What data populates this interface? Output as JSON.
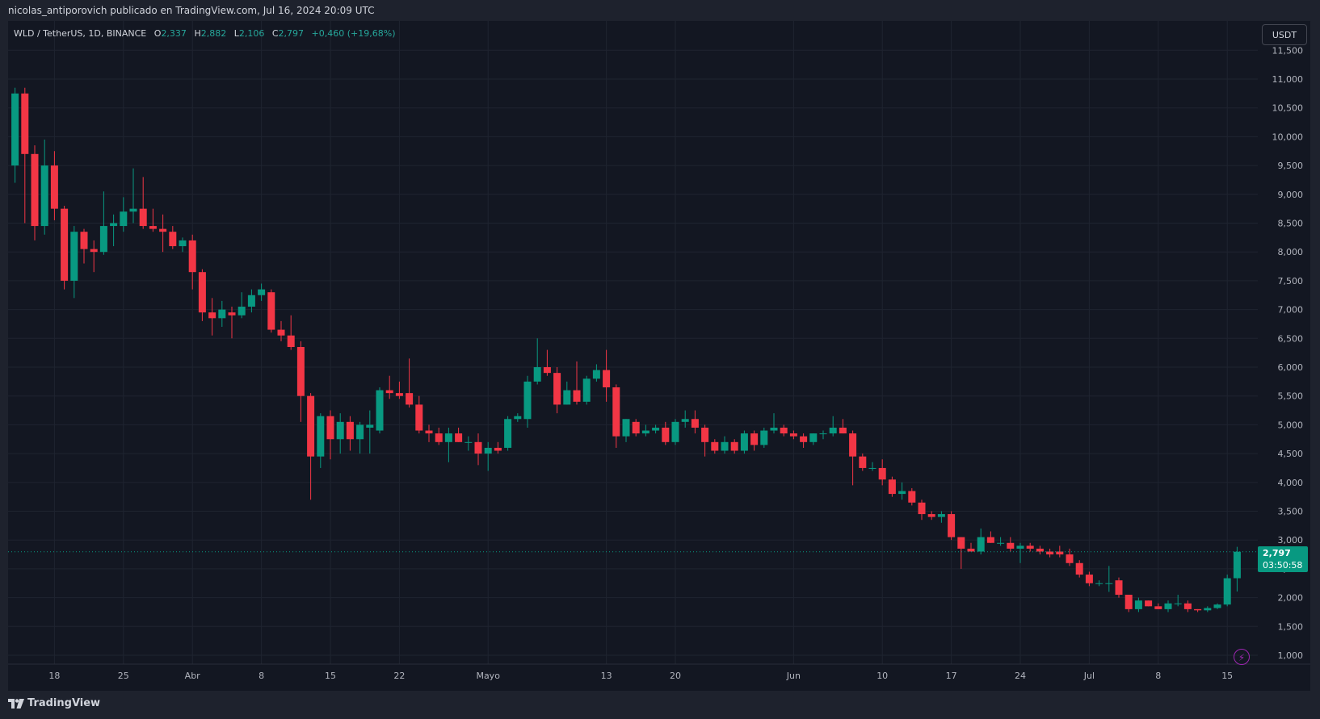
{
  "header": {
    "author_line": "nicolas_antiporovich publicado en TradingView.com, Jul 16, 2024 20:09 UTC"
  },
  "symbol": {
    "name": "WLD / TetherUS, 1D, BINANCE",
    "o_label": "O",
    "o_value": "2,337",
    "h_label": "H",
    "h_value": "2,882",
    "l_label": "L",
    "l_value": "2,106",
    "c_label": "C",
    "c_value": "2,797",
    "change": "+0,460 (+19,68%)"
  },
  "currency": "USDT",
  "last_price": {
    "price": "2,797",
    "countdown": "03:50:58"
  },
  "footer": {
    "brand": "TradingView"
  },
  "colors": {
    "up": "#089981",
    "down": "#f23645",
    "background": "#131722",
    "grid": "#1f2430",
    "text": "#b2b5be",
    "accent": "#9c27b0"
  },
  "icons": [
    "tradingview-logo-icon",
    "lightning-icon"
  ],
  "chart_data": {
    "type": "candlestick",
    "title": "",
    "xlabel": "",
    "ylabel": "",
    "y_axis": {
      "ticks": [
        1.0,
        1.5,
        2.0,
        2.5,
        3.0,
        3.5,
        4.0,
        4.5,
        5.0,
        5.5,
        6.0,
        6.5,
        7.0,
        7.5,
        8.0,
        8.5,
        9.0,
        9.5,
        10.0,
        10.5,
        11.0,
        11.5
      ],
      "tick_labels": [
        "1,000",
        "1,500",
        "2,000",
        "2,500",
        "3,000",
        "3,500",
        "4,000",
        "4,500",
        "5,000",
        "5,500",
        "6,000",
        "6,500",
        "7,000",
        "7,500",
        "8,000",
        "8,500",
        "9,000",
        "9,500",
        "10,000",
        "10,500",
        "11,000",
        "11,500"
      ],
      "ylim": [
        0.9,
        11.55
      ]
    },
    "x_axis": {
      "labels": [
        {
          "label": "18",
          "date": "2024-03-18"
        },
        {
          "label": "25",
          "date": "2024-03-25"
        },
        {
          "label": "Abr",
          "date": "2024-04-01"
        },
        {
          "label": "8",
          "date": "2024-04-08"
        },
        {
          "label": "15",
          "date": "2024-04-15"
        },
        {
          "label": "22",
          "date": "2024-04-22"
        },
        {
          "label": "Mayo",
          "date": "2024-05-01"
        },
        {
          "label": "13",
          "date": "2024-05-13"
        },
        {
          "label": "20",
          "date": "2024-05-20"
        },
        {
          "label": "Jun",
          "date": "2024-06-01"
        },
        {
          "label": "10",
          "date": "2024-06-10"
        },
        {
          "label": "17",
          "date": "2024-06-17"
        },
        {
          "label": "24",
          "date": "2024-06-24"
        },
        {
          "label": "Jul",
          "date": "2024-07-01"
        },
        {
          "label": "8",
          "date": "2024-07-08"
        },
        {
          "label": "15",
          "date": "2024-07-15"
        }
      ],
      "xlim": [
        "2024-03-14",
        "2024-07-16"
      ]
    },
    "grid": true,
    "candles": [
      {
        "date": "2024-03-14",
        "o": 9.5,
        "h": 10.85,
        "l": 9.2,
        "c": 10.75
      },
      {
        "date": "2024-03-15",
        "o": 10.75,
        "h": 10.85,
        "l": 8.5,
        "c": 9.7
      },
      {
        "date": "2024-03-16",
        "o": 9.7,
        "h": 9.85,
        "l": 8.2,
        "c": 8.45
      },
      {
        "date": "2024-03-17",
        "o": 8.45,
        "h": 9.95,
        "l": 8.3,
        "c": 9.5
      },
      {
        "date": "2024-03-18",
        "o": 9.5,
        "h": 9.75,
        "l": 8.55,
        "c": 8.75
      },
      {
        "date": "2024-03-19",
        "o": 8.75,
        "h": 8.8,
        "l": 7.35,
        "c": 7.5
      },
      {
        "date": "2024-03-20",
        "o": 7.5,
        "h": 8.45,
        "l": 7.2,
        "c": 8.35
      },
      {
        "date": "2024-03-21",
        "o": 8.35,
        "h": 8.4,
        "l": 7.8,
        "c": 8.05
      },
      {
        "date": "2024-03-22",
        "o": 8.05,
        "h": 8.2,
        "l": 7.65,
        "c": 8.0
      },
      {
        "date": "2024-03-23",
        "o": 8.0,
        "h": 9.05,
        "l": 7.95,
        "c": 8.45
      },
      {
        "date": "2024-03-24",
        "o": 8.45,
        "h": 8.65,
        "l": 8.1,
        "c": 8.5
      },
      {
        "date": "2024-03-25",
        "o": 8.45,
        "h": 8.95,
        "l": 8.35,
        "c": 8.7
      },
      {
        "date": "2024-03-26",
        "o": 8.7,
        "h": 9.45,
        "l": 8.5,
        "c": 8.75
      },
      {
        "date": "2024-03-27",
        "o": 8.75,
        "h": 9.3,
        "l": 8.4,
        "c": 8.45
      },
      {
        "date": "2024-03-28",
        "o": 8.45,
        "h": 8.75,
        "l": 8.35,
        "c": 8.4
      },
      {
        "date": "2024-03-29",
        "o": 8.4,
        "h": 8.65,
        "l": 8.0,
        "c": 8.35
      },
      {
        "date": "2024-03-30",
        "o": 8.35,
        "h": 8.45,
        "l": 8.05,
        "c": 8.1
      },
      {
        "date": "2024-03-31",
        "o": 8.1,
        "h": 8.25,
        "l": 8.0,
        "c": 8.2
      },
      {
        "date": "2024-04-01",
        "o": 8.2,
        "h": 8.3,
        "l": 7.35,
        "c": 7.65
      },
      {
        "date": "2024-04-02",
        "o": 7.65,
        "h": 7.7,
        "l": 6.8,
        "c": 6.95
      },
      {
        "date": "2024-04-03",
        "o": 6.95,
        "h": 7.2,
        "l": 6.55,
        "c": 6.85
      },
      {
        "date": "2024-04-04",
        "o": 6.85,
        "h": 7.15,
        "l": 6.7,
        "c": 7.0
      },
      {
        "date": "2024-04-05",
        "o": 6.95,
        "h": 7.05,
        "l": 6.5,
        "c": 6.9
      },
      {
        "date": "2024-04-06",
        "o": 6.9,
        "h": 7.3,
        "l": 6.85,
        "c": 7.05
      },
      {
        "date": "2024-04-07",
        "o": 7.05,
        "h": 7.35,
        "l": 6.95,
        "c": 7.25
      },
      {
        "date": "2024-04-08",
        "o": 7.25,
        "h": 7.45,
        "l": 7.15,
        "c": 7.35
      },
      {
        "date": "2024-04-09",
        "o": 7.3,
        "h": 7.35,
        "l": 6.6,
        "c": 6.65
      },
      {
        "date": "2024-04-10",
        "o": 6.65,
        "h": 6.8,
        "l": 6.45,
        "c": 6.55
      },
      {
        "date": "2024-04-11",
        "o": 6.55,
        "h": 6.9,
        "l": 6.3,
        "c": 6.35
      },
      {
        "date": "2024-04-12",
        "o": 6.35,
        "h": 6.45,
        "l": 5.05,
        "c": 5.5
      },
      {
        "date": "2024-04-13",
        "o": 5.5,
        "h": 5.55,
        "l": 3.7,
        "c": 4.45
      },
      {
        "date": "2024-04-14",
        "o": 4.45,
        "h": 5.2,
        "l": 4.25,
        "c": 5.15
      },
      {
        "date": "2024-04-15",
        "o": 5.15,
        "h": 5.25,
        "l": 4.4,
        "c": 4.75
      },
      {
        "date": "2024-04-16",
        "o": 4.75,
        "h": 5.2,
        "l": 4.5,
        "c": 5.05
      },
      {
        "date": "2024-04-17",
        "o": 5.05,
        "h": 5.15,
        "l": 4.55,
        "c": 4.75
      },
      {
        "date": "2024-04-18",
        "o": 4.75,
        "h": 5.05,
        "l": 4.5,
        "c": 5.0
      },
      {
        "date": "2024-04-19",
        "o": 4.95,
        "h": 5.25,
        "l": 4.5,
        "c": 5.0
      },
      {
        "date": "2024-04-20",
        "o": 4.9,
        "h": 5.65,
        "l": 4.85,
        "c": 5.6
      },
      {
        "date": "2024-04-21",
        "o": 5.6,
        "h": 5.85,
        "l": 5.45,
        "c": 5.55
      },
      {
        "date": "2024-04-22",
        "o": 5.55,
        "h": 5.75,
        "l": 5.45,
        "c": 5.5
      },
      {
        "date": "2024-04-23",
        "o": 5.55,
        "h": 6.15,
        "l": 5.3,
        "c": 5.35
      },
      {
        "date": "2024-04-24",
        "o": 5.35,
        "h": 5.5,
        "l": 4.85,
        "c": 4.9
      },
      {
        "date": "2024-04-25",
        "o": 4.9,
        "h": 5.0,
        "l": 4.7,
        "c": 4.85
      },
      {
        "date": "2024-04-26",
        "o": 4.85,
        "h": 4.95,
        "l": 4.65,
        "c": 4.7
      },
      {
        "date": "2024-04-27",
        "o": 4.7,
        "h": 4.95,
        "l": 4.35,
        "c": 4.85
      },
      {
        "date": "2024-04-28",
        "o": 4.85,
        "h": 4.95,
        "l": 4.7,
        "c": 4.7
      },
      {
        "date": "2024-04-29",
        "o": 4.7,
        "h": 4.8,
        "l": 4.55,
        "c": 4.7
      },
      {
        "date": "2024-04-30",
        "o": 4.7,
        "h": 4.85,
        "l": 4.3,
        "c": 4.5
      },
      {
        "date": "2024-05-01",
        "o": 4.5,
        "h": 4.7,
        "l": 4.2,
        "c": 4.6
      },
      {
        "date": "2024-05-02",
        "o": 4.6,
        "h": 4.7,
        "l": 4.5,
        "c": 4.55
      },
      {
        "date": "2024-05-03",
        "o": 4.6,
        "h": 5.15,
        "l": 4.55,
        "c": 5.1
      },
      {
        "date": "2024-05-04",
        "o": 5.1,
        "h": 5.2,
        "l": 5.05,
        "c": 5.15
      },
      {
        "date": "2024-05-05",
        "o": 5.1,
        "h": 5.85,
        "l": 4.95,
        "c": 5.75
      },
      {
        "date": "2024-05-06",
        "o": 5.75,
        "h": 6.5,
        "l": 5.7,
        "c": 6.0
      },
      {
        "date": "2024-05-07",
        "o": 6.0,
        "h": 6.3,
        "l": 5.85,
        "c": 5.9
      },
      {
        "date": "2024-05-08",
        "o": 5.9,
        "h": 6.0,
        "l": 5.2,
        "c": 5.35
      },
      {
        "date": "2024-05-09",
        "o": 5.35,
        "h": 5.75,
        "l": 5.35,
        "c": 5.6
      },
      {
        "date": "2024-05-10",
        "o": 5.6,
        "h": 6.1,
        "l": 5.35,
        "c": 5.4
      },
      {
        "date": "2024-05-11",
        "o": 5.4,
        "h": 5.85,
        "l": 5.35,
        "c": 5.8
      },
      {
        "date": "2024-05-12",
        "o": 5.8,
        "h": 6.05,
        "l": 5.75,
        "c": 5.95
      },
      {
        "date": "2024-05-13",
        "o": 5.95,
        "h": 6.3,
        "l": 5.4,
        "c": 5.65
      },
      {
        "date": "2024-05-14",
        "o": 5.65,
        "h": 5.7,
        "l": 4.6,
        "c": 4.8
      },
      {
        "date": "2024-05-15",
        "o": 4.8,
        "h": 5.1,
        "l": 4.7,
        "c": 5.1
      },
      {
        "date": "2024-05-16",
        "o": 5.05,
        "h": 5.1,
        "l": 4.8,
        "c": 4.85
      },
      {
        "date": "2024-05-17",
        "o": 4.85,
        "h": 5.0,
        "l": 4.8,
        "c": 4.9
      },
      {
        "date": "2024-05-18",
        "o": 4.9,
        "h": 5.0,
        "l": 4.85,
        "c": 4.95
      },
      {
        "date": "2024-05-19",
        "o": 4.95,
        "h": 5.05,
        "l": 4.65,
        "c": 4.7
      },
      {
        "date": "2024-05-20",
        "o": 4.7,
        "h": 5.1,
        "l": 4.65,
        "c": 5.05
      },
      {
        "date": "2024-05-21",
        "o": 5.05,
        "h": 5.25,
        "l": 4.95,
        "c": 5.1
      },
      {
        "date": "2024-05-22",
        "o": 5.1,
        "h": 5.25,
        "l": 4.85,
        "c": 4.95
      },
      {
        "date": "2024-05-23",
        "o": 4.95,
        "h": 5.0,
        "l": 4.45,
        "c": 4.7
      },
      {
        "date": "2024-05-24",
        "o": 4.7,
        "h": 4.75,
        "l": 4.5,
        "c": 4.55
      },
      {
        "date": "2024-05-25",
        "o": 4.55,
        "h": 4.8,
        "l": 4.5,
        "c": 4.7
      },
      {
        "date": "2024-05-26",
        "o": 4.7,
        "h": 4.75,
        "l": 4.5,
        "c": 4.55
      },
      {
        "date": "2024-05-27",
        "o": 4.55,
        "h": 4.9,
        "l": 4.5,
        "c": 4.85
      },
      {
        "date": "2024-05-28",
        "o": 4.85,
        "h": 4.9,
        "l": 4.55,
        "c": 4.65
      },
      {
        "date": "2024-05-29",
        "o": 4.65,
        "h": 4.95,
        "l": 4.6,
        "c": 4.9
      },
      {
        "date": "2024-05-30",
        "o": 4.9,
        "h": 5.2,
        "l": 4.85,
        "c": 4.95
      },
      {
        "date": "2024-05-31",
        "o": 4.95,
        "h": 5.0,
        "l": 4.8,
        "c": 4.85
      },
      {
        "date": "2024-06-01",
        "o": 4.85,
        "h": 4.9,
        "l": 4.75,
        "c": 4.8
      },
      {
        "date": "2024-06-02",
        "o": 4.8,
        "h": 4.85,
        "l": 4.6,
        "c": 4.7
      },
      {
        "date": "2024-06-03",
        "o": 4.7,
        "h": 4.85,
        "l": 4.65,
        "c": 4.85
      },
      {
        "date": "2024-06-04",
        "o": 4.85,
        "h": 4.9,
        "l": 4.75,
        "c": 4.85
      },
      {
        "date": "2024-06-05",
        "o": 4.85,
        "h": 5.15,
        "l": 4.8,
        "c": 4.95
      },
      {
        "date": "2024-06-06",
        "o": 4.95,
        "h": 5.1,
        "l": 4.85,
        "c": 4.85
      },
      {
        "date": "2024-06-07",
        "o": 4.85,
        "h": 4.9,
        "l": 3.95,
        "c": 4.45
      },
      {
        "date": "2024-06-08",
        "o": 4.45,
        "h": 4.5,
        "l": 4.2,
        "c": 4.25
      },
      {
        "date": "2024-06-09",
        "o": 4.25,
        "h": 4.35,
        "l": 4.2,
        "c": 4.25
      },
      {
        "date": "2024-06-10",
        "o": 4.25,
        "h": 4.4,
        "l": 3.95,
        "c": 4.05
      },
      {
        "date": "2024-06-11",
        "o": 4.05,
        "h": 4.1,
        "l": 3.75,
        "c": 3.8
      },
      {
        "date": "2024-06-12",
        "o": 3.8,
        "h": 4.0,
        "l": 3.7,
        "c": 3.85
      },
      {
        "date": "2024-06-13",
        "o": 3.85,
        "h": 3.9,
        "l": 3.6,
        "c": 3.65
      },
      {
        "date": "2024-06-14",
        "o": 3.65,
        "h": 3.7,
        "l": 3.35,
        "c": 3.45
      },
      {
        "date": "2024-06-15",
        "o": 3.45,
        "h": 3.5,
        "l": 3.35,
        "c": 3.4
      },
      {
        "date": "2024-06-16",
        "o": 3.4,
        "h": 3.5,
        "l": 3.3,
        "c": 3.45
      },
      {
        "date": "2024-06-17",
        "o": 3.45,
        "h": 3.5,
        "l": 3.0,
        "c": 3.05
      },
      {
        "date": "2024-06-18",
        "o": 3.05,
        "h": 3.05,
        "l": 2.5,
        "c": 2.85
      },
      {
        "date": "2024-06-19",
        "o": 2.85,
        "h": 2.95,
        "l": 2.8,
        "c": 2.8
      },
      {
        "date": "2024-06-20",
        "o": 2.8,
        "h": 3.2,
        "l": 2.75,
        "c": 3.05
      },
      {
        "date": "2024-06-21",
        "o": 3.05,
        "h": 3.15,
        "l": 2.95,
        "c": 2.95
      },
      {
        "date": "2024-06-22",
        "o": 2.95,
        "h": 3.05,
        "l": 2.9,
        "c": 2.95
      },
      {
        "date": "2024-06-23",
        "o": 2.95,
        "h": 3.05,
        "l": 2.8,
        "c": 2.85
      },
      {
        "date": "2024-06-24",
        "o": 2.85,
        "h": 2.95,
        "l": 2.6,
        "c": 2.9
      },
      {
        "date": "2024-06-25",
        "o": 2.9,
        "h": 2.95,
        "l": 2.8,
        "c": 2.85
      },
      {
        "date": "2024-06-26",
        "o": 2.85,
        "h": 2.9,
        "l": 2.75,
        "c": 2.8
      },
      {
        "date": "2024-06-27",
        "o": 2.8,
        "h": 2.85,
        "l": 2.7,
        "c": 2.75
      },
      {
        "date": "2024-06-28",
        "o": 2.8,
        "h": 2.9,
        "l": 2.7,
        "c": 2.75
      },
      {
        "date": "2024-06-29",
        "o": 2.75,
        "h": 2.85,
        "l": 2.55,
        "c": 2.6
      },
      {
        "date": "2024-06-30",
        "o": 2.6,
        "h": 2.65,
        "l": 2.35,
        "c": 2.4
      },
      {
        "date": "2024-07-01",
        "o": 2.4,
        "h": 2.45,
        "l": 2.2,
        "c": 2.25
      },
      {
        "date": "2024-07-02",
        "o": 2.25,
        "h": 2.3,
        "l": 2.2,
        "c": 2.25
      },
      {
        "date": "2024-07-03",
        "o": 2.25,
        "h": 2.55,
        "l": 2.1,
        "c": 2.25
      },
      {
        "date": "2024-07-04",
        "o": 2.3,
        "h": 2.35,
        "l": 2.0,
        "c": 2.05
      },
      {
        "date": "2024-07-05",
        "o": 2.05,
        "h": 2.05,
        "l": 1.75,
        "c": 1.8
      },
      {
        "date": "2024-07-06",
        "o": 1.8,
        "h": 2.0,
        "l": 1.75,
        "c": 1.95
      },
      {
        "date": "2024-07-07",
        "o": 1.95,
        "h": 1.95,
        "l": 1.85,
        "c": 1.85
      },
      {
        "date": "2024-07-08",
        "o": 1.85,
        "h": 1.9,
        "l": 1.8,
        "c": 1.8
      },
      {
        "date": "2024-07-09",
        "o": 1.8,
        "h": 1.95,
        "l": 1.75,
        "c": 1.9
      },
      {
        "date": "2024-07-10",
        "o": 1.9,
        "h": 2.05,
        "l": 1.85,
        "c": 1.9
      },
      {
        "date": "2024-07-11",
        "o": 1.9,
        "h": 1.95,
        "l": 1.75,
        "c": 1.8
      },
      {
        "date": "2024-07-12",
        "o": 1.8,
        "h": 1.8,
        "l": 1.75,
        "c": 1.78
      },
      {
        "date": "2024-07-13",
        "o": 1.78,
        "h": 1.85,
        "l": 1.75,
        "c": 1.82
      },
      {
        "date": "2024-07-14",
        "o": 1.82,
        "h": 1.9,
        "l": 1.8,
        "c": 1.88
      },
      {
        "date": "2024-07-15",
        "o": 1.88,
        "h": 2.4,
        "l": 1.85,
        "c": 2.337
      },
      {
        "date": "2024-07-16",
        "o": 2.337,
        "h": 2.882,
        "l": 2.106,
        "c": 2.797
      }
    ],
    "last_price": 2.797
  }
}
